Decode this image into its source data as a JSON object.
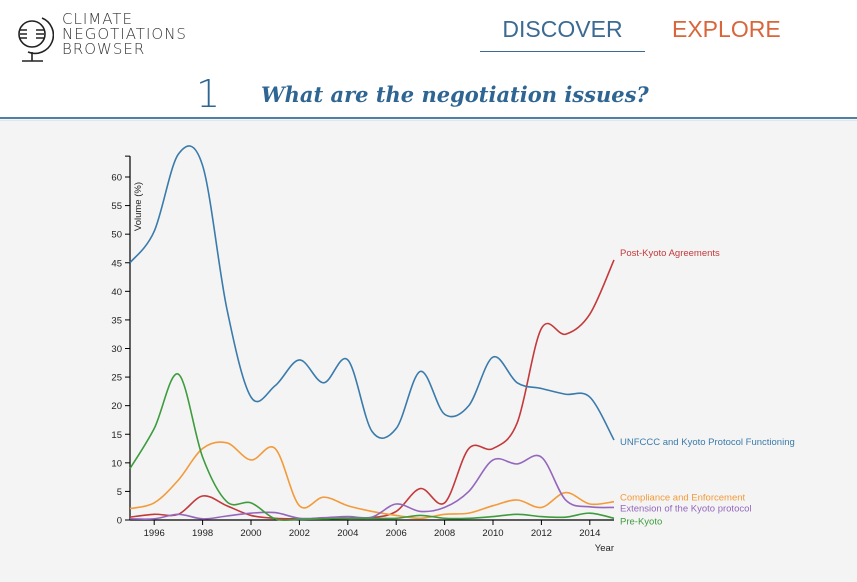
{
  "app": {
    "logo_lines": [
      "CLIMATE",
      "NEGOTIATIONS",
      "BROWSER"
    ]
  },
  "nav": {
    "discover": "DISCOVER",
    "explore": "EXPLORE",
    "active": "discover"
  },
  "section": {
    "number": "1",
    "question": "What are the negotiation issues?"
  },
  "colors": {
    "primary_blue": "#2e6592",
    "explore_orange": "#d9653b"
  },
  "chart_data": {
    "type": "line",
    "title": "",
    "xlabel": "Year",
    "ylabel": "Volume (%)",
    "xlim": [
      1995,
      2015
    ],
    "ylim": [
      0,
      64
    ],
    "x_ticks": [
      1996,
      1998,
      2000,
      2002,
      2004,
      2006,
      2008,
      2010,
      2012,
      2014
    ],
    "y_ticks": [
      0,
      5,
      10,
      15,
      20,
      25,
      30,
      35,
      40,
      45,
      50,
      55,
      60
    ],
    "grid": false,
    "legend": "inline labels at right end of lines",
    "x": [
      1995,
      1996,
      1997,
      1998,
      1999,
      2000,
      2001,
      2002,
      2003,
      2004,
      2005,
      2006,
      2007,
      2008,
      2009,
      2010,
      2011,
      2012,
      2013,
      2014,
      2015
    ],
    "series": [
      {
        "name": "Post-Kyoto Agreements",
        "color": "#c4393b",
        "values": [
          0.5,
          1.0,
          1.0,
          4.2,
          2.5,
          0.8,
          0.3,
          0.2,
          0.2,
          0.3,
          0.4,
          1.5,
          5.5,
          3.0,
          12.5,
          12.5,
          17.0,
          33.5,
          32.5,
          36.0,
          45.5
        ]
      },
      {
        "name": "UNFCCC and Kyoto Protocol Functioning",
        "color": "#3a7bab",
        "values": [
          45.0,
          50.5,
          64.0,
          62.0,
          37.0,
          21.5,
          23.5,
          28.0,
          24.0,
          28.0,
          15.5,
          16.0,
          26.0,
          18.5,
          20.0,
          28.5,
          24.0,
          23.0,
          22.0,
          21.5,
          14.0
        ]
      },
      {
        "name": "Compliance and Enforcement",
        "color": "#f39a3a",
        "values": [
          2.0,
          3.0,
          7.0,
          12.5,
          13.5,
          10.5,
          12.5,
          2.5,
          4.0,
          2.5,
          1.5,
          0.8,
          0.3,
          1.0,
          1.2,
          2.5,
          3.5,
          2.2,
          4.8,
          2.8,
          3.2
        ]
      },
      {
        "name": "Extension of the Kyoto protocol",
        "color": "#9467bd",
        "values": [
          0.2,
          0.2,
          1.0,
          0.2,
          0.7,
          1.2,
          1.3,
          0.3,
          0.4,
          0.6,
          0.5,
          2.8,
          1.5,
          2.2,
          5.0,
          10.5,
          9.8,
          11.0,
          3.5,
          2.3,
          2.2
        ]
      },
      {
        "name": "Pre-Kyoto",
        "color": "#3d9c3d",
        "values": [
          9.0,
          16.0,
          25.5,
          11.0,
          3.2,
          3.0,
          0.2,
          0.1,
          0.2,
          0.3,
          0.3,
          0.3,
          0.8,
          0.3,
          0.3,
          0.6,
          1.0,
          0.6,
          0.5,
          1.2,
          0.3
        ]
      }
    ]
  }
}
